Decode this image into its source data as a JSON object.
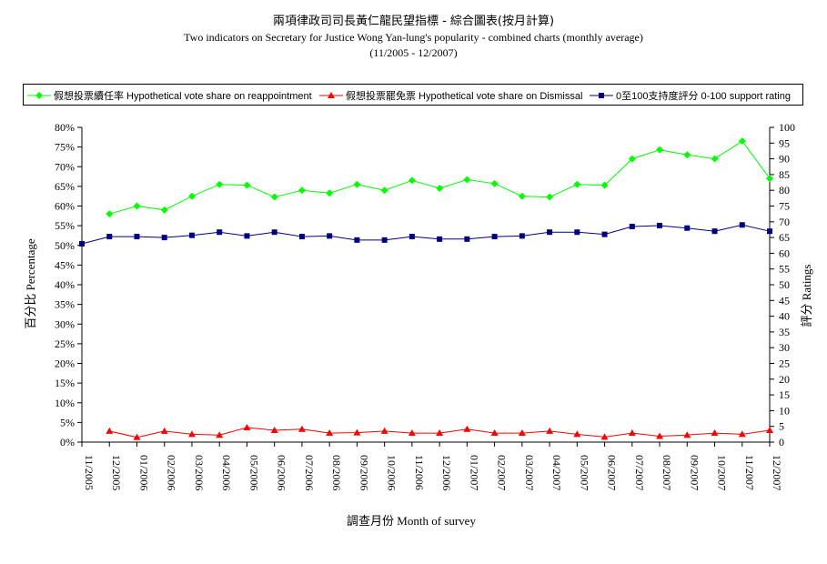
{
  "chart_data": {
    "type": "line",
    "title": "兩項律政司司長黃仁龍民望指標 - 綜合圖表(按月計算)",
    "subtitle": "Two indicators on Secretary for Justice Wong Yan-lung's popularity - combined charts (monthly average)",
    "date_range": "(11/2005 - 12/2007)",
    "categories": [
      "11/2005",
      "12/2005",
      "01/2006",
      "02/2006",
      "03/2006",
      "04/2006",
      "05/2006",
      "06/2006",
      "07/2006",
      "08/2006",
      "09/2006",
      "10/2006",
      "11/2006",
      "12/2006",
      "01/2007",
      "02/2007",
      "03/2007",
      "04/2007",
      "05/2007",
      "06/2007",
      "07/2007",
      "08/2007",
      "09/2007",
      "10/2007",
      "11/2007",
      "12/2007"
    ],
    "xlabel": "調查月份  Month of survey",
    "ylabel_left": "百分比  Percentage",
    "ylabel_right": "評分  Ratings",
    "y_left": {
      "min": 0,
      "max": 80,
      "step": 5,
      "ticks": [
        "0%",
        "5%",
        "10%",
        "15%",
        "20%",
        "25%",
        "30%",
        "35%",
        "40%",
        "45%",
        "50%",
        "55%",
        "60%",
        "65%",
        "70%",
        "75%",
        "80%"
      ]
    },
    "y_right": {
      "min": 0,
      "max": 100,
      "step": 5,
      "ticks": [
        "0",
        "5",
        "10",
        "15",
        "20",
        "25",
        "30",
        "35",
        "40",
        "45",
        "50",
        "55",
        "60",
        "65",
        "70",
        "75",
        "80",
        "85",
        "90",
        "95",
        "100"
      ]
    },
    "legend_position": "top",
    "grid": false,
    "series": [
      {
        "name": "假想投票續任率 Hypothetical vote share on reappointment",
        "axis": "left",
        "color": "#00ff00",
        "marker": "diamond",
        "values": [
          null,
          58,
          60,
          59,
          62.5,
          65.5,
          65.3,
          62.3,
          64,
          63.3,
          65.5,
          64,
          66.5,
          64.5,
          66.7,
          65.7,
          62.5,
          62.3,
          65.5,
          65.3,
          72,
          74.3,
          73,
          72,
          76.5,
          67
        ]
      },
      {
        "name": "假想投票罷免票 Hypothetical vote share on Dismissal",
        "axis": "left",
        "color": "#ff0000",
        "marker": "triangle",
        "values": [
          null,
          2.8,
          1.2,
          2.8,
          2,
          1.8,
          3.7,
          3,
          3.3,
          2.3,
          2.4,
          2.8,
          2.3,
          2.3,
          3.3,
          2.3,
          2.3,
          2.8,
          2,
          1.3,
          2.3,
          1.5,
          1.8,
          2.3,
          2,
          3
        ]
      },
      {
        "name": "0至100支持度評分 0-100 support rating",
        "axis": "right",
        "color": "#000080",
        "marker": "square",
        "values": [
          63,
          65.3,
          65.3,
          65,
          65.7,
          66.7,
          65.5,
          66.7,
          65.3,
          65.5,
          64.2,
          64.2,
          65.3,
          64.5,
          64.5,
          65.3,
          65.5,
          66.7,
          66.7,
          66,
          68.5,
          68.8,
          68,
          67,
          69,
          67
        ]
      }
    ]
  }
}
